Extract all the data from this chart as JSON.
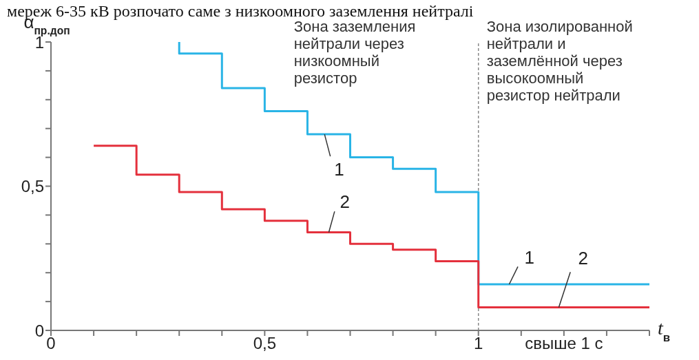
{
  "chart_data": {
    "type": "step",
    "xlabel": "t$_{в}$",
    "ylabel": "α$_{пр.доп}$",
    "annotations": [
      "мереж 6-35 кВ розпочато саме з низкоомного заземлення нейтралі",
      "Зона заземления\nнейтрали через\nнизкоомный\nрезистор",
      "Зона изолированной\nнейтрали и\nзаземлённой через\nвысокоомный\nрезистор нейтрали"
    ],
    "series": [
      {
        "name": "1",
        "color": "#29b4e6",
        "x": [
          0.3,
          0.3,
          0.4,
          0.5,
          0.6,
          0.7,
          0.8,
          0.9,
          1.0,
          1.4
        ],
        "values": [
          1.0,
          0.96,
          0.84,
          0.76,
          0.68,
          0.6,
          0.56,
          0.48,
          0.16,
          0.16
        ]
      },
      {
        "name": "2",
        "color": "#e4303c",
        "x": [
          0.1,
          0.2,
          0.3,
          0.4,
          0.5,
          0.6,
          0.7,
          0.8,
          0.9,
          1.0,
          1.4
        ],
        "values": [
          0.64,
          0.54,
          0.48,
          0.42,
          0.38,
          0.34,
          0.3,
          0.28,
          0.24,
          0.08,
          0.08
        ]
      }
    ],
    "xlim": [
      0,
      1.4
    ],
    "ylim": [
      0,
      1
    ],
    "xticks": [
      0,
      {
        "value": 0.1,
        "label": null
      },
      {
        "value": 0.2,
        "label": null
      },
      {
        "value": 0.3,
        "label": null
      },
      {
        "value": 0.4,
        "label": null
      },
      {
        "value": 0.5,
        "label": "0,5"
      },
      {
        "value": 0.6,
        "label": null
      },
      {
        "value": 0.7,
        "label": null
      },
      {
        "value": 0.8,
        "label": null
      },
      {
        "value": 0.9,
        "label": null
      },
      1,
      {
        "value": 1.1,
        "label": null
      },
      {
        "value": 1.2,
        "label": "свыше 1 с"
      },
      {
        "value": 1.3,
        "label": null
      },
      {
        "value": 1.4,
        "label": null
      }
    ],
    "yticks": [
      0,
      {
        "value": 0.1,
        "label": null
      },
      {
        "value": 0.2,
        "label": null
      },
      {
        "value": 0.3,
        "label": null
      },
      {
        "value": 0.4,
        "label": null
      },
      {
        "value": 0.5,
        "label": "0,5"
      },
      {
        "value": 0.6,
        "label": null
      },
      {
        "value": 0.7,
        "label": null
      },
      {
        "value": 0.8,
        "label": null
      },
      {
        "value": 0.9,
        "label": null
      },
      1
    ],
    "ref_lines": [
      {
        "axis": "x",
        "value": 1,
        "color": "#888888",
        "line_style": "dashed"
      }
    ]
  }
}
